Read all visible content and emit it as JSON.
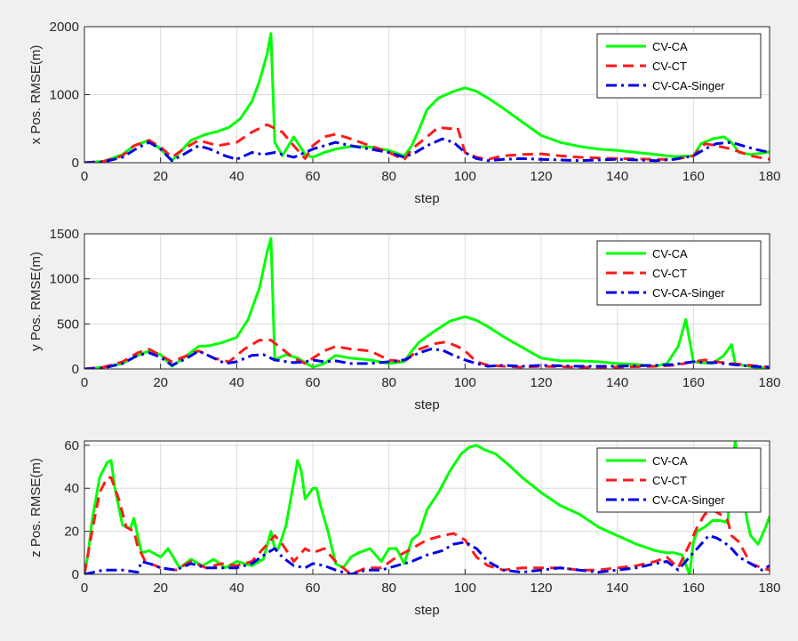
{
  "colors": {
    "figure_bg": "#f0f0f0",
    "axes_bg": "#ffffff",
    "grid": "#dcdcdc",
    "axis": "#262626"
  },
  "chart_data": [
    {
      "type": "line",
      "xlabel": "step",
      "ylabel": "x Pos. RMSE(m)",
      "xlim": [
        0,
        180
      ],
      "ylim": [
        0,
        2000
      ],
      "xticks": [
        "0",
        "20",
        "40",
        "60",
        "80",
        "100",
        "120",
        "140",
        "160",
        "180"
      ],
      "yticks": [
        "0",
        "1000",
        "2000"
      ],
      "grid": true,
      "legend_position": "top-right",
      "series": [
        {
          "name": "CV-CA",
          "color": "#00ff00",
          "style": "solid",
          "x": [
            0,
            5,
            10,
            13,
            17,
            20,
            23,
            25,
            28,
            32,
            35,
            38,
            41,
            44,
            46,
            48,
            49,
            50,
            52,
            55,
            58,
            60,
            63,
            66,
            70,
            75,
            80,
            84,
            86,
            88,
            90,
            93,
            97,
            100,
            103,
            106,
            110,
            115,
            120,
            125,
            130,
            135,
            140,
            145,
            150,
            155,
            160,
            162,
            165,
            168,
            170,
            172,
            175,
            178,
            180
          ],
          "y": [
            0,
            20,
            120,
            250,
            330,
            200,
            30,
            150,
            330,
            420,
            460,
            520,
            650,
            900,
            1200,
            1600,
            1900,
            300,
            100,
            380,
            120,
            80,
            150,
            200,
            240,
            230,
            180,
            100,
            250,
            500,
            780,
            950,
            1050,
            1100,
            1050,
            950,
            800,
            600,
            400,
            300,
            240,
            200,
            180,
            150,
            120,
            90,
            100,
            280,
            350,
            380,
            300,
            150,
            120,
            140,
            160
          ]
        },
        {
          "name": "CV-CT",
          "color": "#ff1a1a",
          "style": "dashed",
          "x": [
            0,
            5,
            10,
            13,
            17,
            20,
            23,
            26,
            30,
            35,
            40,
            44,
            48,
            52,
            55,
            58,
            60,
            63,
            66,
            70,
            75,
            80,
            84,
            86,
            90,
            93,
            96,
            98,
            100,
            103,
            106,
            110,
            115,
            120,
            125,
            130,
            135,
            140,
            150,
            155,
            160,
            163,
            166,
            170,
            175,
            180
          ],
          "y": [
            0,
            20,
            100,
            250,
            330,
            230,
            80,
            200,
            330,
            250,
            300,
            450,
            560,
            450,
            250,
            60,
            250,
            380,
            420,
            350,
            250,
            150,
            40,
            200,
            380,
            520,
            500,
            520,
            150,
            80,
            50,
            100,
            120,
            130,
            100,
            80,
            70,
            60,
            50,
            50,
            100,
            280,
            250,
            200,
            100,
            50
          ]
        },
        {
          "name": "CV-CA-Singer",
          "color": "#0000e6",
          "style": "dashdot",
          "x": [
            0,
            5,
            10,
            14,
            17,
            20,
            23,
            26,
            30,
            33,
            37,
            40,
            44,
            47,
            50,
            55,
            58,
            60,
            63,
            66,
            70,
            75,
            80,
            84,
            87,
            90,
            94,
            97,
            100,
            103,
            106,
            110,
            115,
            120,
            125,
            130,
            135,
            140,
            145,
            150,
            155,
            160,
            163,
            166,
            170,
            173,
            176,
            180
          ],
          "y": [
            0,
            10,
            80,
            220,
            300,
            200,
            30,
            120,
            250,
            200,
            100,
            50,
            150,
            120,
            150,
            80,
            150,
            200,
            250,
            300,
            250,
            200,
            150,
            80,
            150,
            250,
            350,
            300,
            150,
            60,
            30,
            50,
            60,
            50,
            40,
            30,
            40,
            50,
            40,
            30,
            50,
            100,
            200,
            280,
            300,
            250,
            200,
            150
          ]
        }
      ]
    },
    {
      "type": "line",
      "xlabel": "step",
      "ylabel": "y Pos. RMSE(m)",
      "xlim": [
        0,
        180
      ],
      "ylim": [
        0,
        1500
      ],
      "xticks": [
        "0",
        "20",
        "40",
        "60",
        "80",
        "100",
        "120",
        "140",
        "160",
        "180"
      ],
      "yticks": [
        "0",
        "500",
        "1000",
        "1500"
      ],
      "grid": true,
      "legend_position": "top-right",
      "series": [
        {
          "name": "CV-CA",
          "color": "#00ff00",
          "style": "solid",
          "x": [
            0,
            5,
            10,
            14,
            17,
            20,
            23,
            26,
            30,
            33,
            36,
            40,
            43,
            46,
            48,
            49,
            50,
            53,
            56,
            60,
            63,
            66,
            70,
            75,
            80,
            84,
            86,
            88,
            92,
            96,
            100,
            103,
            106,
            110,
            115,
            120,
            125,
            130,
            135,
            140,
            145,
            150,
            153,
            156,
            158,
            160,
            162,
            165,
            168,
            170,
            171,
            173,
            176,
            180
          ],
          "y": [
            0,
            20,
            60,
            150,
            200,
            160,
            30,
            120,
            250,
            260,
            290,
            350,
            550,
            900,
            1300,
            1450,
            100,
            160,
            120,
            20,
            60,
            150,
            120,
            100,
            60,
            80,
            200,
            300,
            420,
            530,
            580,
            540,
            470,
            360,
            240,
            120,
            90,
            90,
            80,
            60,
            50,
            30,
            60,
            250,
            550,
            80,
            70,
            60,
            150,
            270,
            60,
            40,
            20,
            10
          ]
        },
        {
          "name": "CV-CT",
          "color": "#ff1a1a",
          "style": "dashed",
          "x": [
            0,
            5,
            10,
            14,
            17,
            20,
            23,
            27,
            30,
            34,
            38,
            42,
            46,
            49,
            52,
            55,
            58,
            60,
            63,
            66,
            70,
            75,
            80,
            84,
            88,
            92,
            95,
            98,
            100,
            103,
            106,
            110,
            115,
            120,
            130,
            140,
            150,
            155,
            160,
            163,
            166,
            170,
            175,
            180
          ],
          "y": [
            0,
            20,
            80,
            180,
            220,
            150,
            80,
            150,
            200,
            120,
            80,
            220,
            320,
            320,
            220,
            120,
            60,
            120,
            200,
            250,
            220,
            200,
            100,
            80,
            220,
            280,
            300,
            250,
            200,
            80,
            40,
            30,
            20,
            30,
            20,
            20,
            30,
            40,
            80,
            100,
            80,
            60,
            40,
            20
          ]
        },
        {
          "name": "CV-CA-Singer",
          "color": "#0000e6",
          "style": "dashdot",
          "x": [
            0,
            5,
            10,
            14,
            17,
            20,
            23,
            27,
            30,
            34,
            37,
            40,
            44,
            47,
            50,
            55,
            58,
            60,
            63,
            66,
            70,
            75,
            80,
            84,
            88,
            91,
            94,
            97,
            100,
            103,
            106,
            110,
            115,
            120,
            130,
            140,
            150,
            155,
            160,
            163,
            166,
            170,
            175,
            180
          ],
          "y": [
            0,
            10,
            60,
            150,
            180,
            130,
            40,
            120,
            200,
            120,
            60,
            80,
            150,
            160,
            100,
            70,
            80,
            100,
            80,
            90,
            60,
            60,
            80,
            100,
            180,
            220,
            210,
            150,
            100,
            60,
            30,
            40,
            30,
            40,
            30,
            30,
            40,
            50,
            80,
            70,
            70,
            50,
            30,
            20
          ]
        }
      ]
    },
    {
      "type": "line",
      "xlabel": "step",
      "ylabel": "z Pos. RMSE(m)",
      "xlim": [
        0,
        180
      ],
      "ylim": [
        0,
        62
      ],
      "xticks": [
        "0",
        "20",
        "40",
        "60",
        "80",
        "100",
        "120",
        "140",
        "160",
        "180"
      ],
      "yticks": [
        "0",
        "20",
        "40",
        "60"
      ],
      "grid": true,
      "legend_position": "top-right",
      "series": [
        {
          "name": "CV-CA",
          "color": "#00ff00",
          "style": "solid",
          "x": [
            0,
            1,
            2,
            4,
            6,
            7,
            8,
            10,
            12,
            13,
            14,
            15,
            17,
            20,
            22,
            25,
            28,
            31,
            34,
            37,
            40,
            44,
            47,
            49,
            50,
            51,
            53,
            55,
            56,
            57,
            58,
            60,
            61,
            62,
            64,
            66,
            68,
            70,
            72,
            75,
            78,
            80,
            82,
            84,
            86,
            88,
            90,
            93,
            96,
            99,
            101,
            103,
            105,
            108,
            112,
            115,
            120,
            125,
            130,
            135,
            140,
            145,
            150,
            153,
            155,
            157,
            159,
            160,
            161,
            163,
            165,
            167,
            169,
            170,
            171,
            172,
            173,
            174,
            175,
            177,
            179,
            180
          ],
          "y": [
            0,
            10,
            25,
            45,
            52,
            53,
            40,
            23,
            21,
            26,
            18,
            10,
            11,
            8,
            12,
            3,
            7,
            4,
            7,
            3,
            6,
            4,
            7,
            20,
            12,
            12,
            23,
            43,
            53,
            48,
            35,
            40,
            40,
            32,
            20,
            5,
            3,
            8,
            10,
            12,
            6,
            12,
            12,
            5,
            16,
            19,
            30,
            38,
            48,
            56,
            59,
            60,
            58,
            56,
            50,
            45,
            38,
            32,
            28,
            22,
            18,
            14,
            11,
            10,
            10,
            9,
            0,
            15,
            20,
            22,
            25,
            25,
            24,
            48,
            62,
            48,
            40,
            26,
            18,
            14,
            22,
            27
          ]
        },
        {
          "name": "CV-CT",
          "color": "#ff1a1a",
          "style": "dashed",
          "x": [
            0,
            2,
            4,
            6,
            7,
            9,
            11,
            13,
            14,
            16,
            20,
            24,
            28,
            32,
            36,
            40,
            44,
            47,
            50,
            52,
            55,
            58,
            60,
            63,
            66,
            70,
            74,
            78,
            82,
            86,
            90,
            94,
            97,
            100,
            103,
            106,
            110,
            115,
            120,
            125,
            130,
            135,
            140,
            145,
            150,
            153,
            156,
            159,
            161,
            163,
            165,
            167,
            169,
            170,
            172,
            175,
            178,
            180
          ],
          "y": [
            0,
            20,
            38,
            45,
            45,
            35,
            22,
            20,
            13,
            6,
            3,
            2,
            6,
            3,
            5,
            4,
            6,
            12,
            18,
            14,
            6,
            12,
            10,
            12,
            6,
            0,
            3,
            3,
            8,
            12,
            16,
            18,
            19,
            16,
            8,
            4,
            2,
            3,
            3,
            3,
            2,
            2,
            3,
            4,
            6,
            8,
            3,
            14,
            22,
            28,
            30,
            28,
            25,
            18,
            15,
            5,
            3,
            2
          ]
        },
        {
          "name": "CV-CA-Singer",
          "color": "#0000e6",
          "style": "dashdot",
          "x": [
            0,
            5,
            10,
            14,
            15,
            17,
            20,
            24,
            28,
            32,
            36,
            40,
            44,
            48,
            50,
            52,
            55,
            58,
            60,
            63,
            66,
            70,
            74,
            78,
            82,
            86,
            90,
            94,
            97,
            100,
            103,
            106,
            110,
            115,
            120,
            125,
            130,
            135,
            140,
            145,
            150,
            153,
            156,
            159,
            162,
            164,
            166,
            168,
            170,
            172,
            175,
            178,
            180
          ],
          "y": [
            0,
            2,
            2,
            1,
            6,
            5,
            3,
            2,
            5,
            3,
            3,
            3,
            5,
            10,
            12,
            8,
            4,
            3,
            5,
            4,
            2,
            0,
            2,
            2,
            4,
            6,
            9,
            11,
            14,
            15,
            12,
            6,
            2,
            1,
            2,
            3,
            2,
            1,
            2,
            3,
            5,
            6,
            2,
            8,
            14,
            18,
            17,
            15,
            12,
            8,
            5,
            2,
            4
          ]
        }
      ]
    }
  ]
}
